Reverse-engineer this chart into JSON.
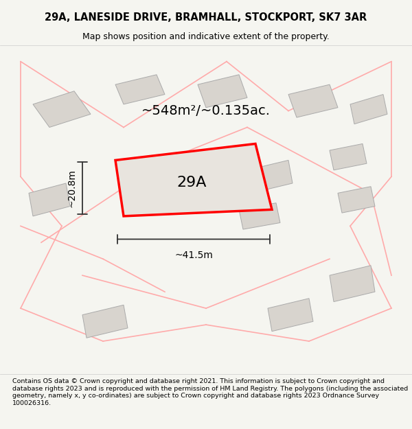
{
  "title_line1": "29A, LANESIDE DRIVE, BRAMHALL, STOCKPORT, SK7 3AR",
  "title_line2": "Map shows position and indicative extent of the property.",
  "area_label": "~548m²/~0.135ac.",
  "plot_label": "29A",
  "width_label": "~41.5m",
  "height_label": "~20.8m",
  "footer_text": "Contains OS data © Crown copyright and database right 2021. This information is subject to Crown copyright and database rights 2023 and is reproduced with the permission of HM Land Registry. The polygons (including the associated geometry, namely x, y co-ordinates) are subject to Crown copyright and database rights 2023 Ordnance Survey 100026316.",
  "bg_color": "#f5f5f0",
  "map_bg": "#f0eeea",
  "plot_fill": "#e8e4de",
  "plot_edge": "#ff0000",
  "road_color": "#ffcccc",
  "building_color": "#d8d4ce",
  "building_edge": "#aaaaaa",
  "footer_bg": "#ffffff",
  "road_lines_color": "#ffaaaa",
  "dim_line_color": "#333333"
}
